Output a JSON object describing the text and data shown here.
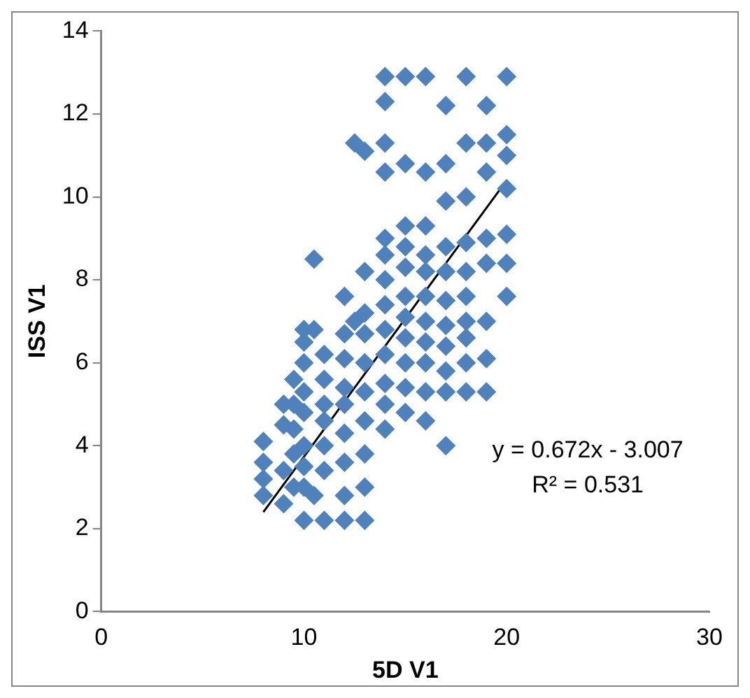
{
  "chart_data": {
    "type": "scatter",
    "xlabel": "5D V1",
    "ylabel": "ISS V1",
    "xlim": [
      0,
      30
    ],
    "xticks": [
      0,
      10,
      20,
      30
    ],
    "ylim": [
      0,
      14
    ],
    "yticks": [
      0,
      2,
      4,
      6,
      8,
      10,
      12,
      14
    ],
    "grid": false,
    "legend": false,
    "annotations": [
      "y = 0.672x - 3.007",
      "R² = 0.531"
    ],
    "series": [
      {
        "type": "scatter",
        "marker": "diamond",
        "color": "#4f81bd",
        "x": [
          8,
          8,
          8,
          8,
          9,
          9,
          9,
          9,
          9.5,
          9.5,
          9.5,
          9.5,
          9.5,
          10,
          10,
          10,
          10,
          10,
          10,
          10,
          10,
          10,
          10.5,
          10.5,
          10.5,
          11,
          11,
          11,
          11,
          11,
          11,
          11,
          12,
          12,
          12,
          12,
          12,
          12,
          12,
          12,
          12,
          12.5,
          12.5,
          13,
          13,
          13,
          13,
          13,
          13,
          13,
          13,
          13,
          13,
          14,
          14,
          14,
          14,
          14,
          14,
          14,
          14,
          14,
          14,
          14,
          14,
          14,
          15,
          15,
          15,
          15,
          15,
          15,
          15,
          15,
          15,
          15,
          15,
          16,
          16,
          16,
          16,
          16,
          16,
          16,
          16,
          16,
          16,
          16,
          17,
          17,
          17,
          17,
          17,
          17,
          17,
          17,
          17,
          17,
          17,
          18,
          18,
          18,
          18,
          18,
          18,
          18,
          18,
          18,
          18,
          19,
          19,
          19,
          19,
          19,
          19,
          19,
          19,
          20,
          20,
          20,
          20,
          20,
          20,
          20
        ],
        "values": [
          2.8,
          3.2,
          3.6,
          4.1,
          2.6,
          3.4,
          4.5,
          5.0,
          3.0,
          3.8,
          4.4,
          5.0,
          5.6,
          2.2,
          3.0,
          3.5,
          4.0,
          4.8,
          5.3,
          6.0,
          6.5,
          6.8,
          8.5,
          2.8,
          6.8,
          2.2,
          3.4,
          4.0,
          4.6,
          5.0,
          5.6,
          6.2,
          2.2,
          2.8,
          3.6,
          4.3,
          5.0,
          5.4,
          6.1,
          6.7,
          7.6,
          11.3,
          7.0,
          2.2,
          3.0,
          3.8,
          4.6,
          5.3,
          6.0,
          6.7,
          7.2,
          8.2,
          11.1,
          4.4,
          5.0,
          5.5,
          6.2,
          6.8,
          7.4,
          8.0,
          8.6,
          9.0,
          10.6,
          11.3,
          12.3,
          12.9,
          4.8,
          5.4,
          6.0,
          6.6,
          7.1,
          7.6,
          8.3,
          8.8,
          9.3,
          10.8,
          12.9,
          4.6,
          5.3,
          6.0,
          6.5,
          7.0,
          7.6,
          8.2,
          8.6,
          9.3,
          10.6,
          12.9,
          4.0,
          5.3,
          5.8,
          6.4,
          6.9,
          7.5,
          8.2,
          8.8,
          9.9,
          10.8,
          12.2,
          5.3,
          6.0,
          6.6,
          7.0,
          7.6,
          8.2,
          8.9,
          10.0,
          11.3,
          12.9,
          5.3,
          6.1,
          7.0,
          8.4,
          9.0,
          10.6,
          11.3,
          12.2,
          7.6,
          8.4,
          9.1,
          10.2,
          11.0,
          11.5,
          12.9
        ]
      },
      {
        "type": "line",
        "marker": "none",
        "color": "#000000",
        "x": [
          8,
          20
        ],
        "values": [
          2.4,
          10.4
        ]
      }
    ]
  }
}
